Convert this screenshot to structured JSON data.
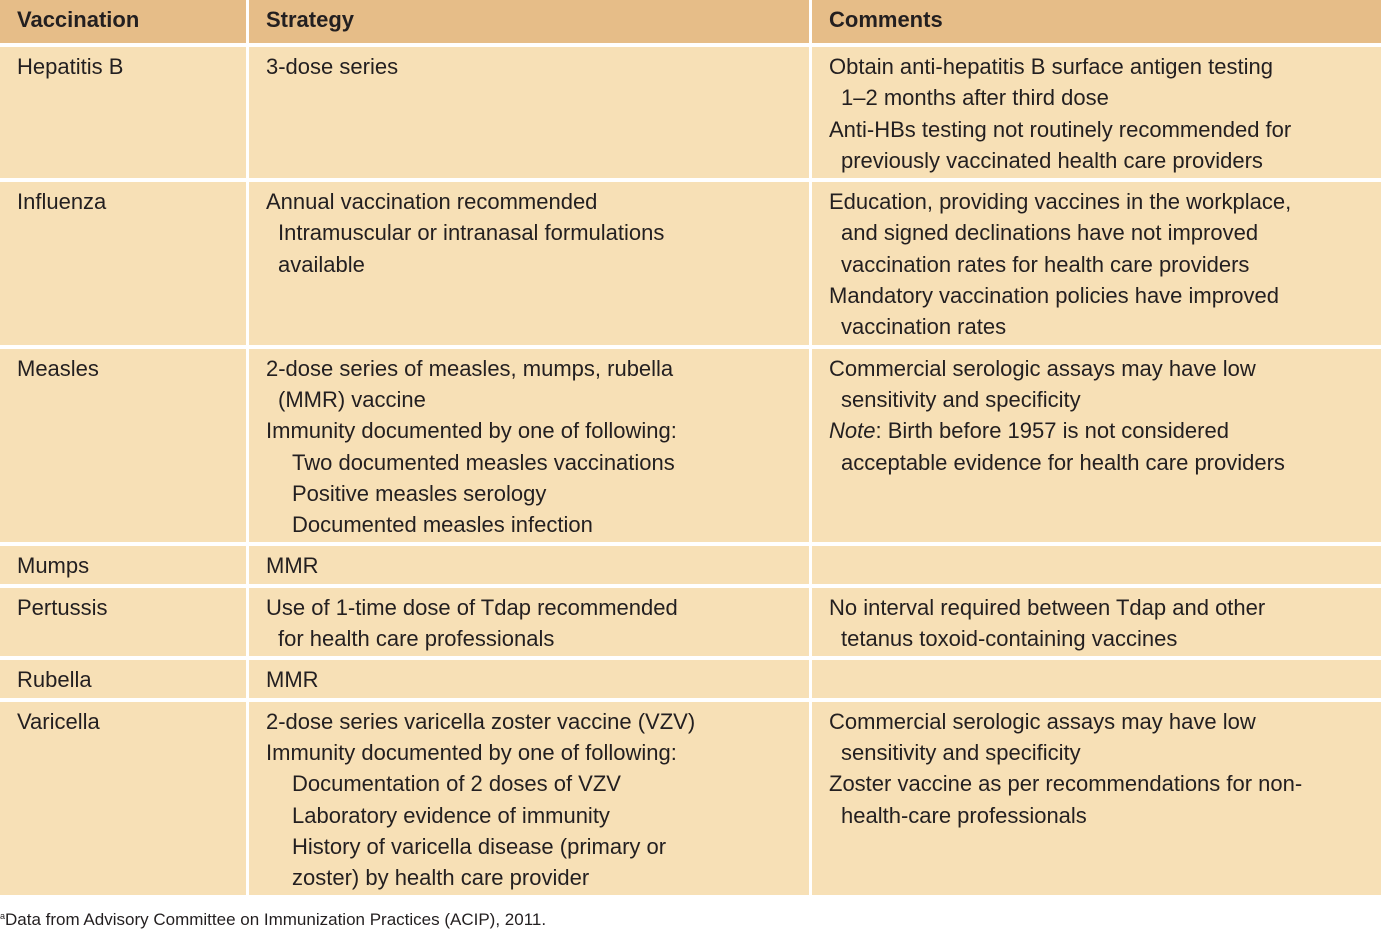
{
  "headers": [
    "Vaccination",
    "Strategy",
    "Comments"
  ],
  "rows": [
    {
      "vaccine": "Hepatitis B",
      "strategy": [
        {
          "t": "3-dose series",
          "i": 0
        }
      ],
      "comments": [
        {
          "t": "Obtain anti-hepatitis B surface antigen testing",
          "i": 0
        },
        {
          "t": "1–2 months after third dose",
          "i": 1
        },
        {
          "t": "Anti-HBs testing not routinely recommended for",
          "i": 0
        },
        {
          "t": "previously vaccinated health care providers",
          "i": 1
        }
      ]
    },
    {
      "vaccine": "Influenza",
      "strategy": [
        {
          "t": "Annual vaccination recommended",
          "i": 0
        },
        {
          "t": "Intramuscular or intranasal formulations",
          "i": 1
        },
        {
          "t": "available",
          "i": 1
        }
      ],
      "comments": [
        {
          "t": "Education, providing vaccines in the workplace,",
          "i": 0
        },
        {
          "t": "and signed declinations have not improved",
          "i": 1
        },
        {
          "t": "vaccination rates for health care providers",
          "i": 1
        },
        {
          "t": "Mandatory vaccination policies have improved",
          "i": 0
        },
        {
          "t": "vaccination rates",
          "i": 1
        }
      ]
    },
    {
      "vaccine": "Measles",
      "strategy": [
        {
          "t": "2-dose series of measles, mumps, rubella",
          "i": 0
        },
        {
          "t": "(MMR) vaccine",
          "i": 1
        },
        {
          "t": "Immunity documented by one of following:",
          "i": 0
        },
        {
          "t": "Two documented measles vaccinations",
          "i": 2
        },
        {
          "t": "Positive measles serology",
          "i": 2
        },
        {
          "t": "Documented measles infection",
          "i": 2
        }
      ],
      "comments": [
        {
          "t": "Commercial serologic assays may have low",
          "i": 0
        },
        {
          "t": "sensitivity and specificity",
          "i": 1
        },
        {
          "em": "Note",
          "t": ": Birth before 1957 is not considered",
          "i": 0
        },
        {
          "t": "acceptable evidence for health care providers",
          "i": 1
        }
      ]
    },
    {
      "vaccine": "Mumps",
      "strategy": [
        {
          "t": "MMR",
          "i": 0
        }
      ],
      "comments": []
    },
    {
      "vaccine": "Pertussis",
      "strategy": [
        {
          "t": "Use of 1-time dose of Tdap recommended",
          "i": 0
        },
        {
          "t": "for health care professionals",
          "i": 1
        }
      ],
      "comments": [
        {
          "t": "No interval required between Tdap and other",
          "i": 0
        },
        {
          "t": "tetanus toxoid-containing vaccines",
          "i": 1
        }
      ]
    },
    {
      "vaccine": "Rubella",
      "strategy": [
        {
          "t": "MMR",
          "i": 0
        }
      ],
      "comments": []
    },
    {
      "vaccine": "Varicella",
      "strategy": [
        {
          "t": "2-dose series varicella zoster vaccine (VZV)",
          "i": 0
        },
        {
          "t": "Immunity documented by one of following:",
          "i": 0
        },
        {
          "t": "Documentation of 2 doses of VZV",
          "i": 2
        },
        {
          "t": "Laboratory evidence of immunity",
          "i": 2
        },
        {
          "t": "History of varicella disease (primary or",
          "i": 2
        },
        {
          "t": "zoster) by health care provider",
          "i": 2
        }
      ],
      "comments": [
        {
          "t": "Commercial serologic assays may have low",
          "i": 0
        },
        {
          "t": "sensitivity and specificity",
          "i": 1
        },
        {
          "t": "Zoster vaccine as per recommendations for non-",
          "i": 0
        },
        {
          "t": "health-care professionals",
          "i": 1
        }
      ]
    }
  ],
  "footnote": {
    "marker": "a",
    "text": "Data from Advisory Committee on Immunization Practices (ACIP), 2011."
  },
  "colors": {
    "header_bg": "#e6bd88",
    "row_bg": "#f7e0b6",
    "border": "#ffffff"
  }
}
